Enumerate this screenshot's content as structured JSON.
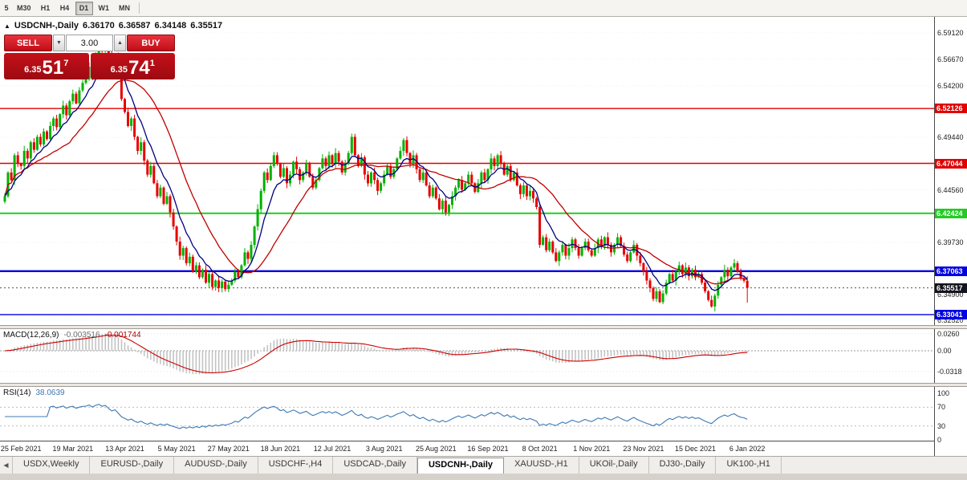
{
  "toolbar": {
    "timeframes": [
      "5",
      "M30",
      "H1",
      "H4",
      "D1",
      "W1",
      "MN"
    ],
    "active": "D1"
  },
  "chart_header": {
    "collapse_icon": "▲",
    "title": "USDCNH-,Daily",
    "open": "6.36170",
    "high": "6.36587",
    "low": "6.34148",
    "close": "6.35517"
  },
  "trade_panel": {
    "sell_label": "SELL",
    "buy_label": "BUY",
    "volume": "3.00",
    "step_down_icon": "▼",
    "step_up_icon": "▲",
    "bid": {
      "prefix": "6.35",
      "big": "51",
      "sup": "7"
    },
    "ask": {
      "prefix": "6.35",
      "big": "74",
      "sup": "1"
    }
  },
  "indicators": {
    "macd_name": "MACD(12,26,9)",
    "macd_main_value": "-0.003516",
    "macd_signal_value": "-0.001744",
    "rsi_name": "RSI(14)",
    "rsi_value": "38.0639"
  },
  "colors": {
    "bull": "#00b200",
    "bear": "#e60000",
    "ma_fast": "#000080",
    "ma_slow": "#c00000",
    "macd_hist": "#c0c0c0",
    "macd_signal": "#cc0000",
    "rsi_line": "#3c78b4",
    "grid": "#efefef",
    "current_line": "#555555"
  },
  "chart_data": {
    "type": "candlestick+indicators",
    "main": {
      "type": "candlestick",
      "symbol": "USDCNH-",
      "timeframe": "Daily",
      "ylim": [
        6.3207,
        6.6061
      ],
      "first_open": 6.435,
      "closes": [
        6.44,
        6.462,
        6.455,
        6.478,
        6.47,
        6.468,
        6.482,
        6.475,
        6.49,
        6.483,
        6.495,
        6.488,
        6.5,
        6.493,
        6.505,
        6.512,
        6.504,
        6.516,
        6.524,
        6.515,
        6.528,
        6.535,
        6.526,
        6.538,
        6.545,
        6.548,
        6.56,
        6.552,
        6.57,
        6.583,
        6.575,
        6.585,
        6.572,
        6.56,
        6.57,
        6.552,
        6.53,
        6.518,
        6.505,
        6.512,
        6.495,
        6.482,
        6.49,
        6.473,
        6.46,
        6.468,
        6.452,
        6.44,
        6.448,
        6.433,
        6.44,
        6.425,
        6.412,
        6.398,
        6.385,
        6.392,
        6.378,
        6.384,
        6.37,
        6.376,
        6.365,
        6.372,
        6.36,
        6.368,
        6.356,
        6.362,
        6.355,
        6.361,
        6.354,
        6.358,
        6.362,
        6.37,
        6.365,
        6.376,
        6.388,
        6.382,
        6.395,
        6.412,
        6.428,
        6.445,
        6.462,
        6.455,
        6.468,
        6.478,
        6.47,
        6.458,
        6.466,
        6.452,
        6.46,
        6.472,
        6.465,
        6.455,
        6.462,
        6.47,
        6.458,
        6.448,
        6.455,
        6.466,
        6.475,
        6.468,
        6.478,
        6.47,
        6.48,
        6.472,
        6.462,
        6.47,
        6.48,
        6.495,
        6.478,
        6.468,
        6.476,
        6.46,
        6.452,
        6.462,
        6.455,
        6.445,
        6.452,
        6.46,
        6.468,
        6.458,
        6.465,
        6.475,
        6.482,
        6.492,
        6.48,
        6.47,
        6.478,
        6.465,
        6.455,
        6.462,
        6.45,
        6.44,
        6.448,
        6.438,
        6.428,
        6.436,
        6.425,
        6.432,
        6.44,
        6.448,
        6.455,
        6.446,
        6.452,
        6.46,
        6.452,
        6.444,
        6.452,
        6.462,
        6.455,
        6.465,
        6.475,
        6.468,
        6.478,
        6.47,
        6.46,
        6.468,
        6.455,
        6.462,
        6.45,
        6.442,
        6.45,
        6.44,
        6.445,
        6.438,
        6.43,
        6.395,
        6.402,
        6.39,
        6.398,
        6.388,
        6.38,
        6.388,
        6.395,
        6.385,
        6.392,
        6.4,
        6.392,
        6.385,
        6.392,
        6.398,
        6.39,
        6.385,
        6.392,
        6.4,
        6.394,
        6.402,
        6.395,
        6.388,
        6.395,
        6.402,
        6.394,
        6.386,
        6.38,
        6.388,
        6.395,
        6.385,
        6.378,
        6.37,
        6.362,
        6.355,
        6.345,
        6.352,
        6.342,
        6.35,
        6.36,
        6.368,
        6.362,
        6.37,
        6.376,
        6.368,
        6.374,
        6.366,
        6.372,
        6.365,
        6.368,
        6.36,
        6.352,
        6.344,
        6.338,
        6.348,
        6.358,
        6.365,
        6.372,
        6.366,
        6.374,
        6.378,
        6.37,
        6.364,
        6.3617,
        6.35517
      ],
      "last_candle": {
        "open": 6.3617,
        "high": 6.36587,
        "low": 6.34148,
        "close": 6.35517
      },
      "wick_pattern": [
        0.0028,
        0.0012,
        0.004,
        0.0018,
        0.0034,
        0.001,
        0.0046,
        0.0022,
        0.0015,
        0.0038,
        0.002,
        0.003
      ],
      "ma_fast_period": 8,
      "ma_slow_period": 21,
      "axis_ticks": [
        {
          "v": 6.5912,
          "label": "6.59120"
        },
        {
          "v": 6.5667,
          "label": "6.56670"
        },
        {
          "v": 6.542,
          "label": "6.54200"
        },
        {
          "v": 6.4944,
          "label": "6.49440"
        },
        {
          "v": 6.4456,
          "label": "6.44560"
        },
        {
          "v": 6.3973,
          "label": "6.39730"
        },
        {
          "v": 6.349,
          "label": "6.34900"
        },
        {
          "v": 6.3252,
          "label": "6.32520"
        }
      ],
      "levels": [
        {
          "price": 6.52126,
          "label": "6.52126",
          "color": "#e00000",
          "width": 1.4
        },
        {
          "price": 6.47044,
          "label": "6.47044",
          "color": "#e00000",
          "width": 1.4
        },
        {
          "price": 6.42424,
          "label": "6.42424",
          "color": "#22cc22",
          "width": 2
        },
        {
          "price": 6.37063,
          "label": "6.37063",
          "color": "#0000e0",
          "width": 2.4
        },
        {
          "price": 6.33041,
          "label": "6.33041",
          "color": "#0000e0",
          "width": 1.4
        }
      ],
      "current_price": {
        "value": 6.35517,
        "label": "6.35517",
        "bg": "#14141f"
      },
      "date_ticks": [
        {
          "i": 5,
          "label": "25 Feb 2021"
        },
        {
          "i": 21,
          "label": "19 Mar 2021"
        },
        {
          "i": 37,
          "label": "13 Apr 2021"
        },
        {
          "i": 53,
          "label": "5 May 2021"
        },
        {
          "i": 69,
          "label": "27 May 2021"
        },
        {
          "i": 85,
          "label": "18 Jun 2021"
        },
        {
          "i": 101,
          "label": "12 Jul 2021"
        },
        {
          "i": 117,
          "label": "3 Aug 2021"
        },
        {
          "i": 133,
          "label": "25 Aug 2021"
        },
        {
          "i": 149,
          "label": "16 Sep 2021"
        },
        {
          "i": 165,
          "label": "8 Oct 2021"
        },
        {
          "i": 181,
          "label": "1 Nov 2021"
        },
        {
          "i": 197,
          "label": "23 Nov 2021"
        },
        {
          "i": 213,
          "label": "15 Dec 2021"
        },
        {
          "i": 229,
          "label": "6 Jan 2022"
        }
      ]
    },
    "macd": {
      "type": "bar+line",
      "params": [
        12,
        26,
        9
      ],
      "ylim": [
        -0.0492,
        0.0332
      ],
      "ticks": [
        {
          "v": 0.026,
          "label": "0.0260"
        },
        {
          "v": 0.0,
          "label": "0.00"
        },
        {
          "v": -0.0318,
          "label": "-0.0318"
        }
      ]
    },
    "rsi": {
      "type": "line",
      "period": 14,
      "ylim": [
        0,
        100
      ],
      "levels": [
        70,
        30
      ],
      "ticks": [
        {
          "v": 100,
          "label": "100"
        },
        {
          "v": 70,
          "label": "70"
        },
        {
          "v": 30,
          "label": "30"
        },
        {
          "v": 0,
          "label": "0"
        }
      ]
    }
  },
  "tabs": {
    "scroll_left_icon": "◀",
    "items": [
      "USDX,Weekly",
      "EURUSD-,Daily",
      "AUDUSD-,Daily",
      "USDCHF-,H4",
      "USDCAD-,Daily",
      "USDCNH-,Daily",
      "XAUUSD-,H1",
      "UKOil-,Daily",
      "DJ30-,Daily",
      "UK100-,H1"
    ],
    "active": "USDCNH-,Daily"
  }
}
